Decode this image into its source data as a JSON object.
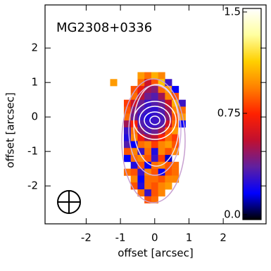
{
  "chart_data": {
    "type": "heatmap",
    "title": "MG2308+0336",
    "x_label": "offset [arcsec]",
    "y_label": "offset [arcsec]",
    "xlim": [
      -3.2,
      3.25
    ],
    "ylim": [
      -3.1,
      3.25
    ],
    "xticks": [
      -2,
      -1,
      0,
      1,
      2
    ],
    "yticks": [
      -2,
      -1,
      0,
      1,
      2
    ],
    "x": [
      -1.2,
      -1.0,
      -0.8,
      -0.6,
      -0.4,
      -0.2,
      0.0,
      0.2,
      0.4,
      0.6,
      0.8,
      1.0
    ],
    "y": [
      1.2,
      1.0,
      0.8,
      0.6,
      0.4,
      0.2,
      0.0,
      -0.2,
      -0.4,
      -0.6,
      -0.8,
      -1.0,
      -1.2,
      -1.4,
      -1.6,
      -1.8,
      -2.0,
      -2.2,
      -2.4
    ],
    "values": [
      [
        null,
        null,
        null,
        null,
        1.0,
        0.9,
        1.05,
        0.95,
        null,
        null,
        null,
        null
      ],
      [
        1.0,
        null,
        null,
        null,
        0.9,
        0.6,
        0.85,
        1.1,
        0.3,
        null,
        null,
        null
      ],
      [
        null,
        null,
        null,
        0.85,
        0.7,
        0.5,
        0.45,
        0.9,
        1.0,
        0.2,
        null,
        null
      ],
      [
        null,
        null,
        null,
        0.9,
        0.55,
        0.4,
        0.35,
        0.5,
        0.95,
        0.85,
        null,
        null
      ],
      [
        null,
        null,
        0.8,
        0.6,
        0.4,
        0.3,
        0.35,
        0.4,
        0.6,
        1.05,
        0.3,
        null
      ],
      [
        null,
        null,
        0.85,
        0.45,
        0.35,
        0.3,
        0.28,
        0.35,
        0.5,
        0.95,
        0.9,
        null
      ],
      [
        null,
        null,
        0.9,
        0.4,
        0.3,
        0.25,
        0.3,
        0.32,
        0.45,
        0.85,
        1.0,
        null
      ],
      [
        null,
        null,
        0.5,
        0.75,
        0.35,
        0.3,
        0.3,
        0.35,
        0.6,
        0.9,
        0.2,
        null
      ],
      [
        null,
        null,
        0.3,
        0.9,
        0.45,
        0.35,
        0.4,
        0.5,
        0.85,
        1.0,
        null,
        null
      ],
      [
        null,
        null,
        0.25,
        0.95,
        0.7,
        0.5,
        0.55,
        0.75,
        0.9,
        0.8,
        null,
        null
      ],
      [
        null,
        null,
        0.35,
        0.2,
        0.9,
        0.95,
        0.8,
        0.95,
        1.0,
        0.85,
        null,
        null
      ],
      [
        null,
        null,
        0.85,
        0.95,
        0.3,
        0.9,
        0.25,
        0.95,
        0.85,
        0.95,
        null,
        null
      ],
      [
        null,
        null,
        0.2,
        0.9,
        0.95,
        0.85,
        0.3,
        0.8,
        0.15,
        null,
        null,
        null
      ],
      [
        null,
        null,
        null,
        0.25,
        0.85,
        0.2,
        0.9,
        0.95,
        0.85,
        0.9,
        null,
        null
      ],
      [
        null,
        null,
        0.9,
        0.85,
        0.3,
        0.95,
        0.85,
        0.2,
        0.85,
        0.9,
        null,
        null
      ],
      [
        null,
        null,
        null,
        0.95,
        0.2,
        0.9,
        0.9,
        0.85,
        0.95,
        0.95,
        null,
        null
      ],
      [
        null,
        null,
        null,
        0.85,
        0.25,
        0.9,
        0.85,
        0.95,
        1.0,
        null,
        null,
        null
      ],
      [
        null,
        null,
        null,
        null,
        0.9,
        0.3,
        0.85,
        0.95,
        null,
        null,
        null,
        null
      ],
      [
        null,
        null,
        null,
        null,
        null,
        0.85,
        0.9,
        null,
        null,
        null,
        null,
        null
      ]
    ],
    "clim": [
      0,
      1.5
    ],
    "colormap": [
      "#000000",
      "#0000ff",
      "#6020a0",
      "#c01030",
      "#ff2000",
      "#ff8000",
      "#ffd000",
      "#ffffa0",
      "#ffffff"
    ],
    "colorbar_ticks": [
      {
        "value": 0,
        "label": "0.0"
      },
      0.75,
      1.5
    ]
  }
}
